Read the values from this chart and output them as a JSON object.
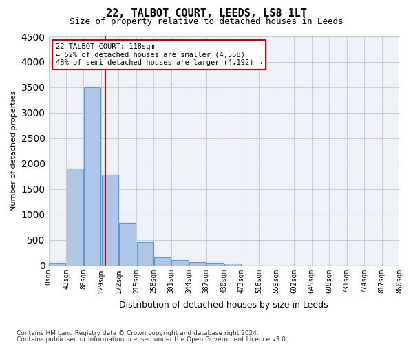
{
  "title": "22, TALBOT COURT, LEEDS, LS8 1LT",
  "subtitle": "Size of property relative to detached houses in Leeds",
  "xlabel": "Distribution of detached houses by size in Leeds",
  "ylabel": "Number of detached properties",
  "bar_values": [
    50,
    1900,
    3500,
    1780,
    840,
    460,
    160,
    100,
    70,
    55,
    35,
    0,
    0,
    0,
    0,
    0,
    0,
    0,
    0,
    0
  ],
  "bar_labels": [
    "0sqm",
    "43sqm",
    "86sqm",
    "129sqm",
    "172sqm",
    "215sqm",
    "258sqm",
    "301sqm",
    "344sqm",
    "387sqm",
    "430sqm",
    "473sqm",
    "516sqm",
    "559sqm",
    "602sqm",
    "645sqm",
    "688sqm",
    "731sqm",
    "774sqm",
    "817sqm",
    "860sqm"
  ],
  "bar_color": "#aec6e8",
  "bar_edgecolor": "#5b9bd5",
  "grid_color": "#cccccc",
  "bg_color": "#eef2f8",
  "vline_x": 2.75,
  "vline_color": "#cc0000",
  "annotation_text": "22 TALBOT COURT: 118sqm\n← 52% of detached houses are smaller (4,558)\n48% of semi-detached houses are larger (4,192) →",
  "annotation_box_color": "#cc0000",
  "ylim": [
    0,
    4500
  ],
  "footnote1": "Contains HM Land Registry data © Crown copyright and database right 2024.",
  "footnote2": "Contains public sector information licensed under the Open Government Licence v3.0."
}
